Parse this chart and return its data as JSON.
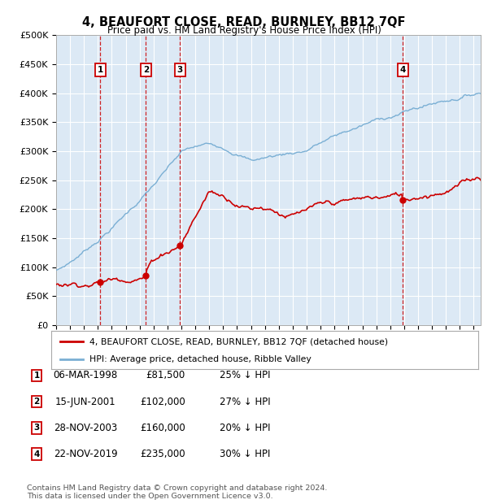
{
  "title": "4, BEAUFORT CLOSE, READ, BURNLEY, BB12 7QF",
  "subtitle": "Price paid vs. HM Land Registry's House Price Index (HPI)",
  "bg_color": "#dce9f5",
  "red_color": "#cc0000",
  "blue_color": "#7aafd4",
  "grid_color": "#ffffff",
  "transactions": [
    {
      "num": 1,
      "date": "06-MAR-1998",
      "year": 1998.17,
      "price": 81500,
      "pct": "25%"
    },
    {
      "num": 2,
      "date": "15-JUN-2001",
      "year": 2001.45,
      "price": 102000,
      "pct": "27%"
    },
    {
      "num": 3,
      "date": "28-NOV-2003",
      "year": 2003.9,
      "price": 160000,
      "pct": "20%"
    },
    {
      "num": 4,
      "date": "22-NOV-2019",
      "year": 2019.9,
      "price": 235000,
      "pct": "30%"
    }
  ],
  "yticks": [
    0,
    50000,
    100000,
    150000,
    200000,
    250000,
    300000,
    350000,
    400000,
    450000,
    500000
  ],
  "ylabels": [
    "£0",
    "£50K",
    "£100K",
    "£150K",
    "£200K",
    "£250K",
    "£300K",
    "£350K",
    "£400K",
    "£450K",
    "£500K"
  ],
  "xmin": 1995.0,
  "xmax": 2025.5,
  "ymin": 0,
  "ymax": 500000,
  "footer": "Contains HM Land Registry data © Crown copyright and database right 2024.\nThis data is licensed under the Open Government Licence v3.0.",
  "legend_red": "4, BEAUFORT CLOSE, READ, BURNLEY, BB12 7QF (detached house)",
  "legend_blue": "HPI: Average price, detached house, Ribble Valley"
}
